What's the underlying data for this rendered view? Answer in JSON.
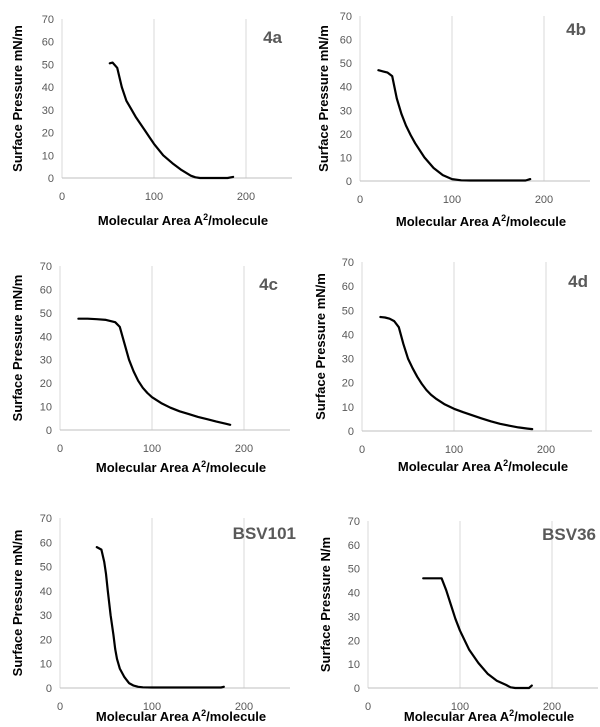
{
  "chart_data": [
    {
      "type": "line",
      "title": "4a",
      "xlabel": "Molecular Area A",
      "xlabel_sup": "2",
      "xlabel_suffix": "/molecule",
      "ylabel": "Surface Pressure mN/m",
      "xlim": [
        0,
        250
      ],
      "ylim": [
        0,
        70
      ],
      "xticks": [
        0,
        100,
        200
      ],
      "yticks": [
        0,
        10,
        20,
        30,
        40,
        50,
        60,
        70
      ],
      "gridlines": "vertical",
      "x": [
        52,
        55,
        60,
        65,
        70,
        75,
        80,
        85,
        90,
        95,
        100,
        110,
        120,
        130,
        140,
        145,
        150,
        160,
        170,
        180,
        186
      ],
      "y": [
        50.5,
        50.8,
        48.5,
        40,
        34,
        30.5,
        27,
        24,
        21,
        18,
        15,
        10,
        6.5,
        3.5,
        1,
        0.3,
        0,
        0,
        0,
        0,
        0.5
      ]
    },
    {
      "type": "line",
      "title": "4b",
      "xlabel": "Molecular Area A",
      "xlabel_sup": "2",
      "xlabel_suffix": "/molecule",
      "ylabel": "Surface Pressure mN/m",
      "xlim": [
        0,
        250
      ],
      "ylim": [
        0,
        70
      ],
      "xticks": [
        0,
        100,
        200
      ],
      "yticks": [
        0,
        10,
        20,
        30,
        40,
        50,
        60,
        70
      ],
      "gridlines": "vertical",
      "x": [
        20,
        25,
        30,
        35,
        40,
        45,
        50,
        55,
        60,
        70,
        80,
        90,
        100,
        110,
        120,
        140,
        160,
        180,
        185
      ],
      "y": [
        47,
        46.5,
        46,
        44.5,
        35,
        28.5,
        23.5,
        19.5,
        16,
        10,
        5.5,
        2.5,
        0.8,
        0.3,
        0.2,
        0.2,
        0.2,
        0.2,
        0.8
      ]
    },
    {
      "type": "line",
      "title": "4c",
      "xlabel": "Molecular Area A",
      "xlabel_sup": "2",
      "xlabel_suffix": "/molecule",
      "ylabel": "Surface Pressure mN/m",
      "xlim": [
        0,
        250
      ],
      "ylim": [
        0,
        70
      ],
      "xticks": [
        0,
        100,
        200
      ],
      "yticks": [
        0,
        10,
        20,
        30,
        40,
        50,
        60,
        70
      ],
      "gridlines": "vertical",
      "x": [
        20,
        30,
        40,
        50,
        60,
        65,
        70,
        75,
        80,
        85,
        90,
        95,
        100,
        110,
        120,
        130,
        140,
        150,
        160,
        170,
        180,
        185
      ],
      "y": [
        47.5,
        47.5,
        47.3,
        47,
        46,
        44,
        37,
        30,
        25,
        21,
        18,
        15.8,
        14,
        11.5,
        9.5,
        8,
        6.8,
        5.6,
        4.6,
        3.6,
        2.7,
        2.2
      ]
    },
    {
      "type": "line",
      "title": "4d",
      "xlabel": "Molecular Area A",
      "xlabel_sup": "2",
      "xlabel_suffix": "/molecule",
      "ylabel": "Surface Pressure mN/m",
      "xlim": [
        0,
        250
      ],
      "ylim": [
        0,
        70
      ],
      "xticks": [
        0,
        100,
        200
      ],
      "yticks": [
        0,
        10,
        20,
        30,
        40,
        50,
        60,
        70
      ],
      "gridlines": "vertical",
      "x": [
        20,
        25,
        30,
        35,
        40,
        45,
        50,
        55,
        60,
        65,
        70,
        75,
        80,
        90,
        100,
        110,
        120,
        130,
        140,
        150,
        160,
        170,
        180,
        185
      ],
      "y": [
        47.2,
        47,
        46.5,
        45.5,
        43,
        36,
        30,
        26,
        22.5,
        19.5,
        17,
        15,
        13.5,
        11,
        9.2,
        7.8,
        6.5,
        5.2,
        4,
        3,
        2.2,
        1.5,
        1,
        0.8
      ]
    },
    {
      "type": "line",
      "title": "BSV101",
      "xlabel": "Molecular Area A",
      "xlabel_sup": "2",
      "xlabel_suffix": "/molecule",
      "ylabel": "Surface Pressure mN/m",
      "xlim": [
        0,
        250
      ],
      "ylim": [
        0,
        70
      ],
      "xticks": [
        0,
        100,
        200
      ],
      "yticks": [
        0,
        10,
        20,
        30,
        40,
        50,
        60,
        70
      ],
      "gridlines": "vertical",
      "x": [
        40,
        45,
        48,
        50,
        52,
        55,
        58,
        60,
        62,
        65,
        70,
        75,
        80,
        85,
        90,
        100,
        120,
        150,
        175,
        178
      ],
      "y": [
        58,
        57,
        52,
        47,
        40,
        30,
        22,
        16,
        12,
        8,
        4.5,
        2,
        1,
        0.5,
        0.3,
        0.2,
        0.2,
        0.2,
        0.2,
        0.5
      ]
    },
    {
      "type": "line",
      "title": "BSV36",
      "xlabel": "Molecular Area A",
      "xlabel_sup": "2",
      "xlabel_suffix": "/molecule",
      "ylabel": "Surface Pressure N/m",
      "xlim": [
        0,
        250
      ],
      "ylim": [
        0,
        70
      ],
      "xticks": [
        0,
        100,
        200
      ],
      "yticks": [
        0,
        10,
        20,
        30,
        40,
        50,
        60,
        70
      ],
      "gridlines": "vertical",
      "x": [
        60,
        70,
        80,
        85,
        90,
        95,
        100,
        110,
        120,
        130,
        140,
        150,
        155,
        160,
        165,
        170,
        175,
        178
      ],
      "y": [
        46,
        46,
        46,
        41,
        35,
        29,
        24,
        16,
        10.5,
        6,
        3,
        1.3,
        0.3,
        0,
        0,
        0,
        0,
        1
      ]
    }
  ]
}
